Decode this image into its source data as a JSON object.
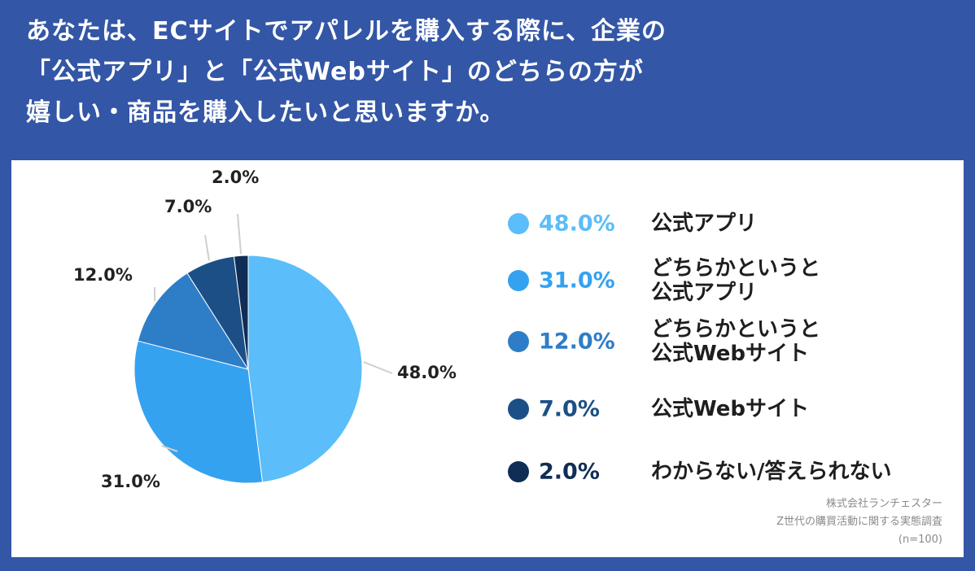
{
  "title_lines": [
    "あなたは、ECサイトでアパレルを購入する際に、企業の",
    "「公式アプリ」と「公式Webサイト」のどちらの方が",
    "嬉しい・商品を購入したいと思いますか。"
  ],
  "chart_data": {
    "type": "pie",
    "title": "あなたは、ECサイトでアパレルを購入する際に、企業の「公式アプリ」と「公式Webサイト」のどちらの方が嬉しい・商品を購入したいと思いますか。",
    "slices": [
      {
        "label": "公式アプリ",
        "label_lines": [
          "公式アプリ"
        ],
        "value": 48.0,
        "display": "48.0%",
        "color": "#5bbdf9"
      },
      {
        "label": "どちらかというと公式アプリ",
        "label_lines": [
          "どちらかというと",
          "公式アプリ"
        ],
        "value": 31.0,
        "display": "31.0%",
        "color": "#35a2f0"
      },
      {
        "label": "どちらかというと公式Webサイト",
        "label_lines": [
          "どちらかというと",
          "公式Webサイト"
        ],
        "value": 12.0,
        "display": "12.0%",
        "color": "#2d7ec7"
      },
      {
        "label": "公式Webサイト",
        "label_lines": [
          "公式Webサイト"
        ],
        "value": 7.0,
        "display": "7.0%",
        "color": "#1c4f86"
      },
      {
        "label": "わからない/答えられない",
        "label_lines": [
          "わからない/答えられない"
        ],
        "value": 2.0,
        "display": "2.0%",
        "color": "#102d55"
      }
    ],
    "legend_position": "right"
  },
  "source_lines": [
    "株式会社ランチェスター",
    "Z世代の購買活動に関する実態調査",
    "(n=100)"
  ]
}
